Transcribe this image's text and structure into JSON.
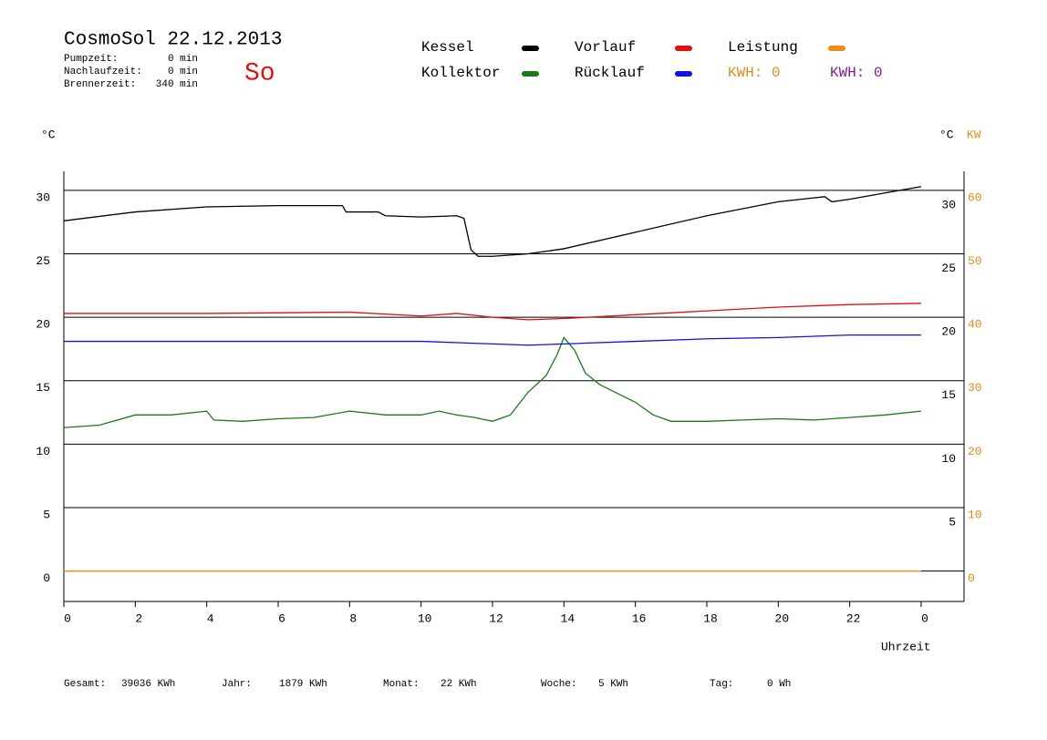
{
  "header": {
    "title": "CosmoSol 22.12.2013",
    "day": "So",
    "info": [
      {
        "label": "Pumpzeit:",
        "value": "0 min"
      },
      {
        "label": "Nachlaufzeit:",
        "value": "0 min"
      },
      {
        "label": "Brennerzeit:",
        "value": "340 min"
      }
    ],
    "kwh": [
      {
        "text": "KWH: 0",
        "color": "#e08c1a"
      },
      {
        "text": "KWH: 0",
        "color": "#8b1a8b"
      }
    ]
  },
  "chart_data": {
    "type": "line",
    "ylabel": "°C",
    "y2label": "°C",
    "y2unit": "KW",
    "xlabel": "Uhrzeit",
    "xlim": [
      0,
      24
    ],
    "xticks": [
      0,
      2,
      4,
      6,
      8,
      10,
      12,
      14,
      16,
      18,
      20,
      22,
      {
        "value": 24,
        "label": "0"
      }
    ],
    "ylim": [
      -2.4,
      31.5
    ],
    "yticks": [
      0,
      5,
      10,
      15,
      20,
      25,
      30
    ],
    "y2lim": [
      -4.8,
      63
    ],
    "y2ticks": [
      0,
      10,
      20,
      30,
      40,
      50,
      60
    ],
    "grid": true,
    "series": [
      {
        "name": "Kessel",
        "color": "#000000",
        "x": [
          0,
          2,
          4,
          6,
          7.8,
          7.9,
          8.8,
          9,
          10,
          11,
          11.2,
          11.4,
          11.6,
          12,
          13,
          14,
          16,
          18,
          20,
          21.3,
          21.5,
          22,
          23,
          24
        ],
        "values": [
          27.6,
          28.3,
          28.7,
          28.8,
          28.8,
          28.3,
          28.3,
          28.0,
          27.9,
          28.0,
          27.8,
          25.3,
          24.8,
          24.8,
          25.0,
          25.4,
          26.7,
          28.0,
          29.1,
          29.5,
          29.1,
          29.3,
          29.8,
          30.3
        ]
      },
      {
        "name": "Kollektor",
        "color": "#1a7a1a",
        "x": [
          0,
          1,
          2,
          3,
          4,
          4.2,
          5,
          6,
          7,
          8,
          9,
          10,
          10.5,
          11,
          11.5,
          12,
          12.5,
          13,
          13.5,
          13.8,
          14,
          14.3,
          14.6,
          15,
          15.5,
          16,
          16.5,
          17,
          18,
          19,
          20,
          21,
          22,
          23,
          24
        ],
        "values": [
          11.3,
          11.5,
          12.3,
          12.3,
          12.6,
          11.9,
          11.8,
          12.0,
          12.1,
          12.6,
          12.3,
          12.3,
          12.6,
          12.3,
          12.1,
          11.8,
          12.3,
          14.1,
          15.4,
          17.0,
          18.4,
          17.4,
          15.6,
          14.7,
          14.0,
          13.3,
          12.3,
          11.8,
          11.8,
          11.9,
          12.0,
          11.9,
          12.1,
          12.3,
          12.6
        ]
      },
      {
        "name": "Vorlauf",
        "color": "#e01010",
        "x": [
          0,
          4,
          8,
          10,
          11,
          12,
          13,
          14,
          16,
          18,
          20,
          22,
          24
        ],
        "values": [
          20.3,
          20.3,
          20.4,
          20.1,
          20.3,
          20.0,
          19.8,
          19.9,
          20.2,
          20.5,
          20.8,
          21.0,
          21.1
        ]
      },
      {
        "name": "Rücklauf",
        "color": "#1010e0",
        "x": [
          0,
          6,
          10,
          12,
          13,
          14,
          16,
          18,
          20,
          22,
          24
        ],
        "values": [
          18.1,
          18.1,
          18.1,
          17.9,
          17.8,
          17.9,
          18.1,
          18.3,
          18.4,
          18.6,
          18.6
        ]
      },
      {
        "name": "Leistung",
        "color": "#f08c1a",
        "axis": "y2",
        "x": [
          0,
          24
        ],
        "values": [
          0,
          0
        ]
      }
    ]
  },
  "footer": [
    {
      "label": "Gesamt:",
      "value": "39036 KWh"
    },
    {
      "label": "Jahr:",
      "value": "1879 KWh"
    },
    {
      "label": "Monat:",
      "value": "22 KWh"
    },
    {
      "label": "Woche:",
      "value": "5 KWh"
    },
    {
      "label": "Tag:",
      "value": "0 Wh"
    }
  ]
}
